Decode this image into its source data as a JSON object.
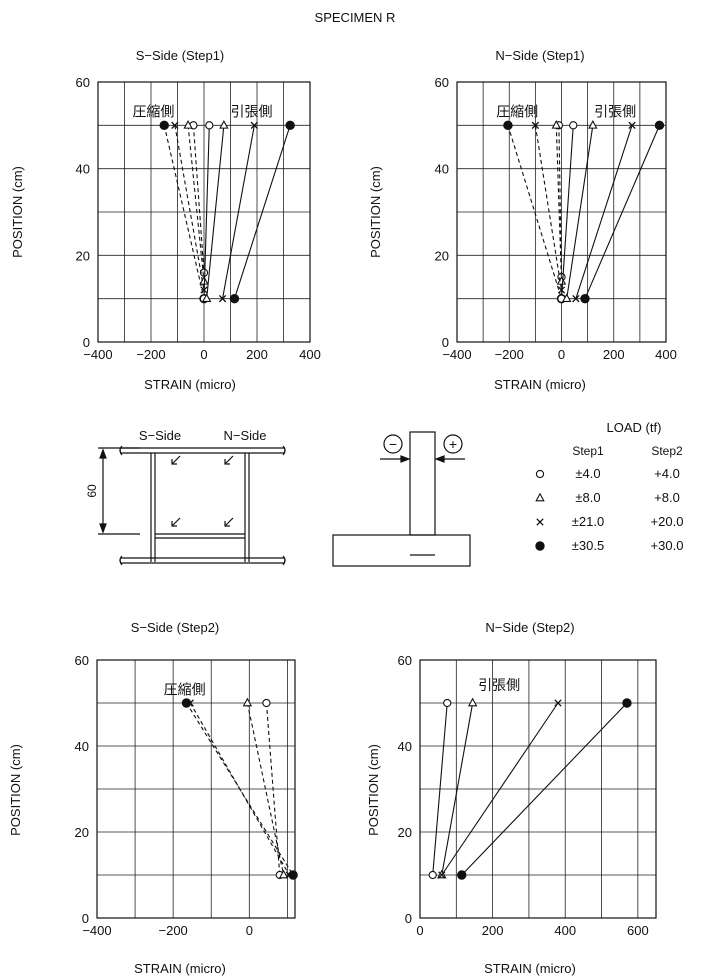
{
  "figure_title": "SPECIMEN R",
  "load_table": {
    "title": "LOAD (tf)",
    "col_headers": [
      "Step1",
      "Step2"
    ],
    "rows": [
      {
        "marker": "open-circle",
        "step1": "±4.0",
        "step2": "+4.0"
      },
      {
        "marker": "triangle",
        "step1": "±8.0",
        "step2": "+8.0"
      },
      {
        "marker": "cross",
        "step1": "±21.0",
        "step2": "+20.0"
      },
      {
        "marker": "filled-circle",
        "step1": "±30.5",
        "step2": "+30.0"
      }
    ]
  },
  "schematic": {
    "s_side_label": "S−Side",
    "n_side_label": "N−Side",
    "dim_label": "60",
    "minus_symbol": "−",
    "plus_symbol": "+"
  },
  "chart_data": [
    {
      "type": "line",
      "title": "S−Side (Step1)",
      "xlabel": "STRAIN (micro)",
      "ylabel": "POSITION (cm)",
      "xlim": [
        -400,
        400
      ],
      "ylim": [
        0,
        60
      ],
      "xticks": [
        -400,
        -200,
        0,
        200,
        400
      ],
      "xtick_labels": [
        "−400",
        "−200",
        "0",
        "200",
        "400"
      ],
      "yticks": [
        0,
        20,
        40,
        60
      ],
      "ytick_labels": [
        "0",
        "20",
        "40",
        "60"
      ],
      "xgrid": [
        -300,
        -200,
        -100,
        0,
        100,
        200,
        300
      ],
      "ygrid": [
        10,
        20,
        30,
        40,
        50
      ],
      "annotations": [
        {
          "text": "圧縮側",
          "x": -270,
          "y": 52
        },
        {
          "text": "引張側",
          "x": 100,
          "y": 52
        }
      ],
      "series": [
        {
          "marker": "circle",
          "dash": true,
          "x": [
            -40,
            0
          ],
          "y": [
            50,
            16
          ]
        },
        {
          "marker": "triangle",
          "dash": true,
          "x": [
            -60,
            0
          ],
          "y": [
            50,
            14
          ]
        },
        {
          "marker": "cross",
          "dash": true,
          "x": [
            -110,
            0
          ],
          "y": [
            50,
            12
          ]
        },
        {
          "marker": "filled",
          "dash": true,
          "x": [
            -150,
            0
          ],
          "y": [
            50,
            10
          ]
        },
        {
          "marker": "circle",
          "dash": false,
          "x": [
            20,
            0
          ],
          "y": [
            50,
            10
          ]
        },
        {
          "marker": "triangle",
          "dash": false,
          "x": [
            75,
            10
          ],
          "y": [
            50,
            10
          ]
        },
        {
          "marker": "cross",
          "dash": false,
          "x": [
            190,
            70
          ],
          "y": [
            50,
            10
          ]
        },
        {
          "marker": "filled",
          "dash": false,
          "x": [
            325,
            115
          ],
          "y": [
            50,
            10
          ]
        }
      ]
    },
    {
      "type": "line",
      "title": "N−Side (Step1)",
      "xlabel": "STRAIN (micro)",
      "ylabel": "POSITION (cm)",
      "xlim": [
        -400,
        400
      ],
      "ylim": [
        0,
        60
      ],
      "xticks": [
        -400,
        -200,
        0,
        200,
        400
      ],
      "xtick_labels": [
        "−400",
        "−200",
        "0",
        "200",
        "400"
      ],
      "yticks": [
        0,
        20,
        40,
        60
      ],
      "ytick_labels": [
        "0",
        "20",
        "40",
        "60"
      ],
      "xgrid": [
        -300,
        -200,
        -100,
        0,
        100,
        200,
        300
      ],
      "ygrid": [
        10,
        20,
        30,
        40,
        50
      ],
      "annotations": [
        {
          "text": "圧縮側",
          "x": -250,
          "y": 52
        },
        {
          "text": "引張側",
          "x": 125,
          "y": 52
        }
      ],
      "series": [
        {
          "marker": "circle",
          "dash": true,
          "x": [
            -10,
            0
          ],
          "y": [
            50,
            15
          ]
        },
        {
          "marker": "triangle",
          "dash": true,
          "x": [
            -20,
            0
          ],
          "y": [
            50,
            14
          ]
        },
        {
          "marker": "cross",
          "dash": true,
          "x": [
            -100,
            0
          ],
          "y": [
            50,
            12
          ]
        },
        {
          "marker": "filled",
          "dash": true,
          "x": [
            -205,
            0
          ],
          "y": [
            50,
            10
          ]
        },
        {
          "marker": "circle",
          "dash": false,
          "x": [
            45,
            0
          ],
          "y": [
            50,
            10
          ]
        },
        {
          "marker": "triangle",
          "dash": false,
          "x": [
            120,
            20
          ],
          "y": [
            50,
            10
          ]
        },
        {
          "marker": "cross",
          "dash": false,
          "x": [
            270,
            55
          ],
          "y": [
            50,
            10
          ]
        },
        {
          "marker": "filled",
          "dash": false,
          "x": [
            375,
            90
          ],
          "y": [
            50,
            10
          ]
        }
      ]
    },
    {
      "type": "line",
      "title": "S−Side (Step2)",
      "xlabel": "STRAIN (micro)",
      "ylabel": "POSITION (cm)",
      "xlim": [
        -400,
        120
      ],
      "ylim": [
        0,
        60
      ],
      "xticks": [
        -400,
        -200,
        0
      ],
      "xtick_labels": [
        "−400",
        "−200",
        "0"
      ],
      "yticks": [
        0,
        20,
        40,
        60
      ],
      "ytick_labels": [
        "0",
        "20",
        "40",
        "60"
      ],
      "xgrid": [
        -300,
        -200,
        -100,
        0,
        100
      ],
      "ygrid": [
        10,
        20,
        30,
        40,
        50
      ],
      "annotations": [
        {
          "text": "圧縮側",
          "x": -225,
          "y": 52
        }
      ],
      "series": [
        {
          "marker": "circle",
          "dash": true,
          "x": [
            45,
            80
          ],
          "y": [
            50,
            10
          ]
        },
        {
          "marker": "triangle",
          "dash": true,
          "x": [
            -5,
            90
          ],
          "y": [
            50,
            10
          ]
        },
        {
          "marker": "cross",
          "dash": true,
          "x": [
            -155,
            105
          ],
          "y": [
            50,
            10
          ]
        },
        {
          "marker": "filled",
          "dash": true,
          "x": [
            -165,
            115
          ],
          "y": [
            50,
            10
          ]
        }
      ]
    },
    {
      "type": "line",
      "title": "N−Side (Step2)",
      "xlabel": "STRAIN (micro)",
      "ylabel": "POSITION (cm)",
      "xlim": [
        0,
        650
      ],
      "ylim": [
        0,
        60
      ],
      "xticks": [
        0,
        200,
        400,
        600
      ],
      "xtick_labels": [
        "0",
        "200",
        "400",
        "600"
      ],
      "yticks": [
        0,
        20,
        40,
        60
      ],
      "ytick_labels": [
        "0",
        "20",
        "40",
        "60"
      ],
      "xgrid": [
        100,
        200,
        300,
        400,
        500,
        600
      ],
      "ygrid": [
        10,
        20,
        30,
        40,
        50
      ],
      "annotations": [
        {
          "text": "引張側",
          "x": 160,
          "y": 53
        }
      ],
      "series": [
        {
          "marker": "circle",
          "dash": false,
          "x": [
            75,
            35
          ],
          "y": [
            50,
            10
          ]
        },
        {
          "marker": "triangle",
          "dash": false,
          "x": [
            145,
            60
          ],
          "y": [
            50,
            10
          ]
        },
        {
          "marker": "cross",
          "dash": false,
          "x": [
            380,
            60
          ],
          "y": [
            50,
            10
          ]
        },
        {
          "marker": "filled",
          "dash": false,
          "x": [
            570,
            115
          ],
          "y": [
            50,
            10
          ]
        }
      ]
    }
  ]
}
